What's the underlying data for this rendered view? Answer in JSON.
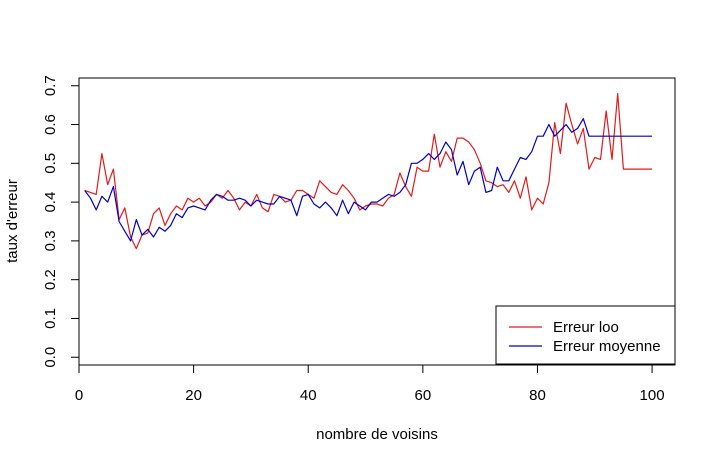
{
  "chart_data": {
    "type": "line",
    "xlabel": "nombre de voisins",
    "ylabel": "taux d'erreur",
    "xlim": [
      0,
      104
    ],
    "ylim": [
      -0.02,
      0.72
    ],
    "xticks": [
      0,
      20,
      40,
      60,
      80,
      100
    ],
    "xtick_labels": [
      "0",
      "20",
      "40",
      "60",
      "80",
      "100"
    ],
    "yticks": [
      0.0,
      0.1,
      0.2,
      0.3,
      0.4,
      0.5,
      0.6,
      0.7
    ],
    "ytick_labels": [
      "0.0",
      "0.1",
      "0.2",
      "0.3",
      "0.4",
      "0.5",
      "0.6",
      "0.7"
    ],
    "grid": false,
    "legend_position": "bottom-right",
    "x": [
      1,
      2,
      3,
      4,
      5,
      6,
      7,
      8,
      9,
      10,
      11,
      12,
      13,
      14,
      15,
      16,
      17,
      18,
      19,
      20,
      21,
      22,
      23,
      24,
      25,
      26,
      27,
      28,
      29,
      30,
      31,
      32,
      33,
      34,
      35,
      36,
      37,
      38,
      39,
      40,
      41,
      42,
      43,
      44,
      45,
      46,
      47,
      48,
      49,
      50,
      51,
      52,
      53,
      54,
      55,
      56,
      57,
      58,
      59,
      60,
      61,
      62,
      63,
      64,
      65,
      66,
      67,
      68,
      69,
      70,
      71,
      72,
      73,
      74,
      75,
      76,
      77,
      78,
      79,
      80,
      81,
      82,
      83,
      84,
      85,
      86,
      87,
      88,
      89,
      90,
      91,
      92,
      93,
      94,
      95,
      96,
      97,
      98,
      99,
      100
    ],
    "series": [
      {
        "name": "Erreur loo",
        "color": "#e31a1c",
        "values": [
          0.43,
          0.425,
          0.42,
          0.525,
          0.445,
          0.485,
          0.355,
          0.385,
          0.31,
          0.28,
          0.315,
          0.32,
          0.37,
          0.385,
          0.34,
          0.37,
          0.39,
          0.38,
          0.41,
          0.4,
          0.41,
          0.39,
          0.4,
          0.42,
          0.41,
          0.43,
          0.41,
          0.38,
          0.4,
          0.39,
          0.42,
          0.385,
          0.375,
          0.42,
          0.415,
          0.4,
          0.405,
          0.43,
          0.43,
          0.42,
          0.41,
          0.455,
          0.44,
          0.425,
          0.42,
          0.445,
          0.43,
          0.41,
          0.38,
          0.39,
          0.395,
          0.395,
          0.39,
          0.41,
          0.42,
          0.475,
          0.44,
          0.415,
          0.49,
          0.48,
          0.48,
          0.575,
          0.49,
          0.53,
          0.505,
          0.565,
          0.565,
          0.555,
          0.535,
          0.5,
          0.455,
          0.45,
          0.44,
          0.445,
          0.425,
          0.455,
          0.41,
          0.465,
          0.38,
          0.41,
          0.395,
          0.45,
          0.605,
          0.525,
          0.655,
          0.6,
          0.55,
          0.59,
          0.485,
          0.515,
          0.51,
          0.635,
          0.51,
          0.68,
          0.485,
          0.485,
          0.485,
          0.485,
          0.485,
          0.485
        ]
      },
      {
        "name": "Erreur moyenne",
        "color": "#0000cc",
        "values": [
          0.43,
          0.41,
          0.38,
          0.415,
          0.4,
          0.44,
          0.35,
          0.325,
          0.3,
          0.355,
          0.315,
          0.33,
          0.31,
          0.335,
          0.325,
          0.34,
          0.37,
          0.36,
          0.385,
          0.39,
          0.385,
          0.38,
          0.405,
          0.42,
          0.415,
          0.405,
          0.405,
          0.41,
          0.405,
          0.39,
          0.405,
          0.4,
          0.395,
          0.395,
          0.415,
          0.41,
          0.405,
          0.365,
          0.415,
          0.42,
          0.395,
          0.385,
          0.4,
          0.385,
          0.365,
          0.405,
          0.37,
          0.4,
          0.39,
          0.38,
          0.4,
          0.4,
          0.41,
          0.42,
          0.415,
          0.425,
          0.445,
          0.5,
          0.5,
          0.51,
          0.525,
          0.51,
          0.525,
          0.555,
          0.535,
          0.47,
          0.505,
          0.445,
          0.48,
          0.49,
          0.425,
          0.43,
          0.49,
          0.455,
          0.455,
          0.485,
          0.515,
          0.51,
          0.53,
          0.57,
          0.57,
          0.6,
          0.57,
          0.585,
          0.6,
          0.58,
          0.59,
          0.615,
          0.57,
          0.57,
          0.57,
          0.57,
          0.57,
          0.57,
          0.57,
          0.57,
          0.57,
          0.57,
          0.57,
          0.57
        ]
      }
    ]
  }
}
